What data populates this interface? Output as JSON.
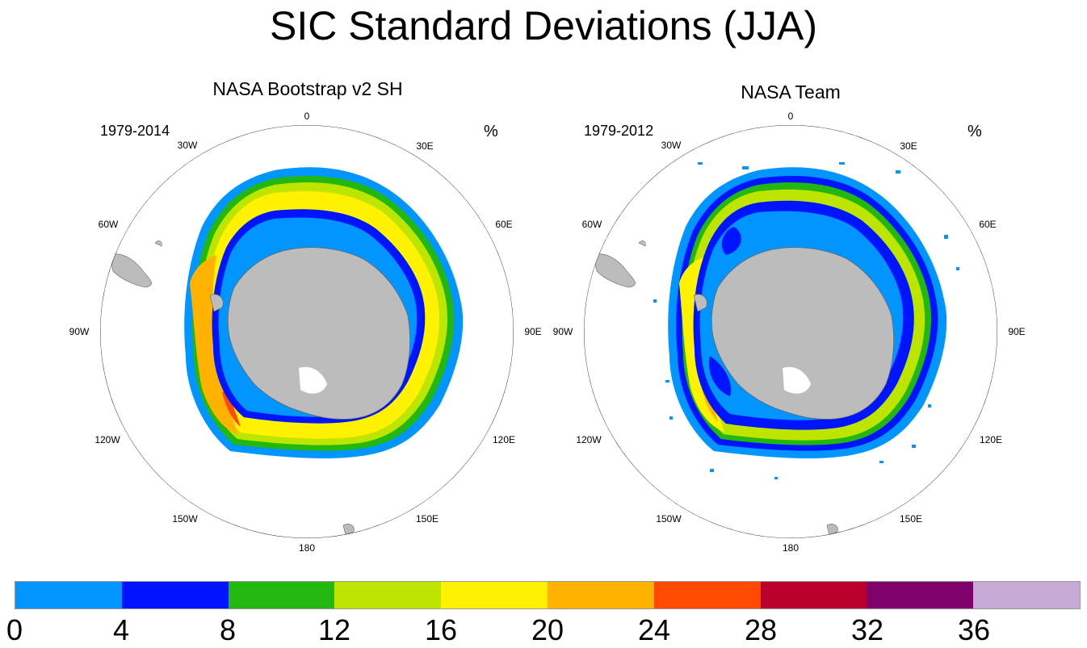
{
  "title": "SIC Standard Deviations (JJA)",
  "panels": [
    {
      "title": "NASA Bootstrap v2 SH",
      "period": "1979-2014",
      "unit": "%",
      "longitude_labels": [
        "0",
        "30E",
        "60E",
        "90E",
        "120E",
        "150E",
        "180",
        "150W",
        "120W",
        "90W",
        "60W",
        "30W"
      ]
    },
    {
      "title": "NASA Team",
      "period": "1979-2012",
      "unit": "%",
      "longitude_labels": [
        "0",
        "30E",
        "60E",
        "90E",
        "120E",
        "150E",
        "180",
        "150W",
        "120W",
        "90W",
        "60W",
        "30W"
      ]
    }
  ],
  "colorbar": {
    "labels": [
      "0",
      "4",
      "8",
      "12",
      "16",
      "20",
      "24",
      "28",
      "32",
      "36"
    ],
    "colors": [
      "#0095ff",
      "#0014ff",
      "#23b80f",
      "#bde500",
      "#fff200",
      "#ffb300",
      "#ff4a00",
      "#b9002c",
      "#7d006b",
      "#c7a9d5"
    ]
  },
  "map_colors": {
    "land": "#bcbcbc",
    "ocean": "#ffffff"
  }
}
